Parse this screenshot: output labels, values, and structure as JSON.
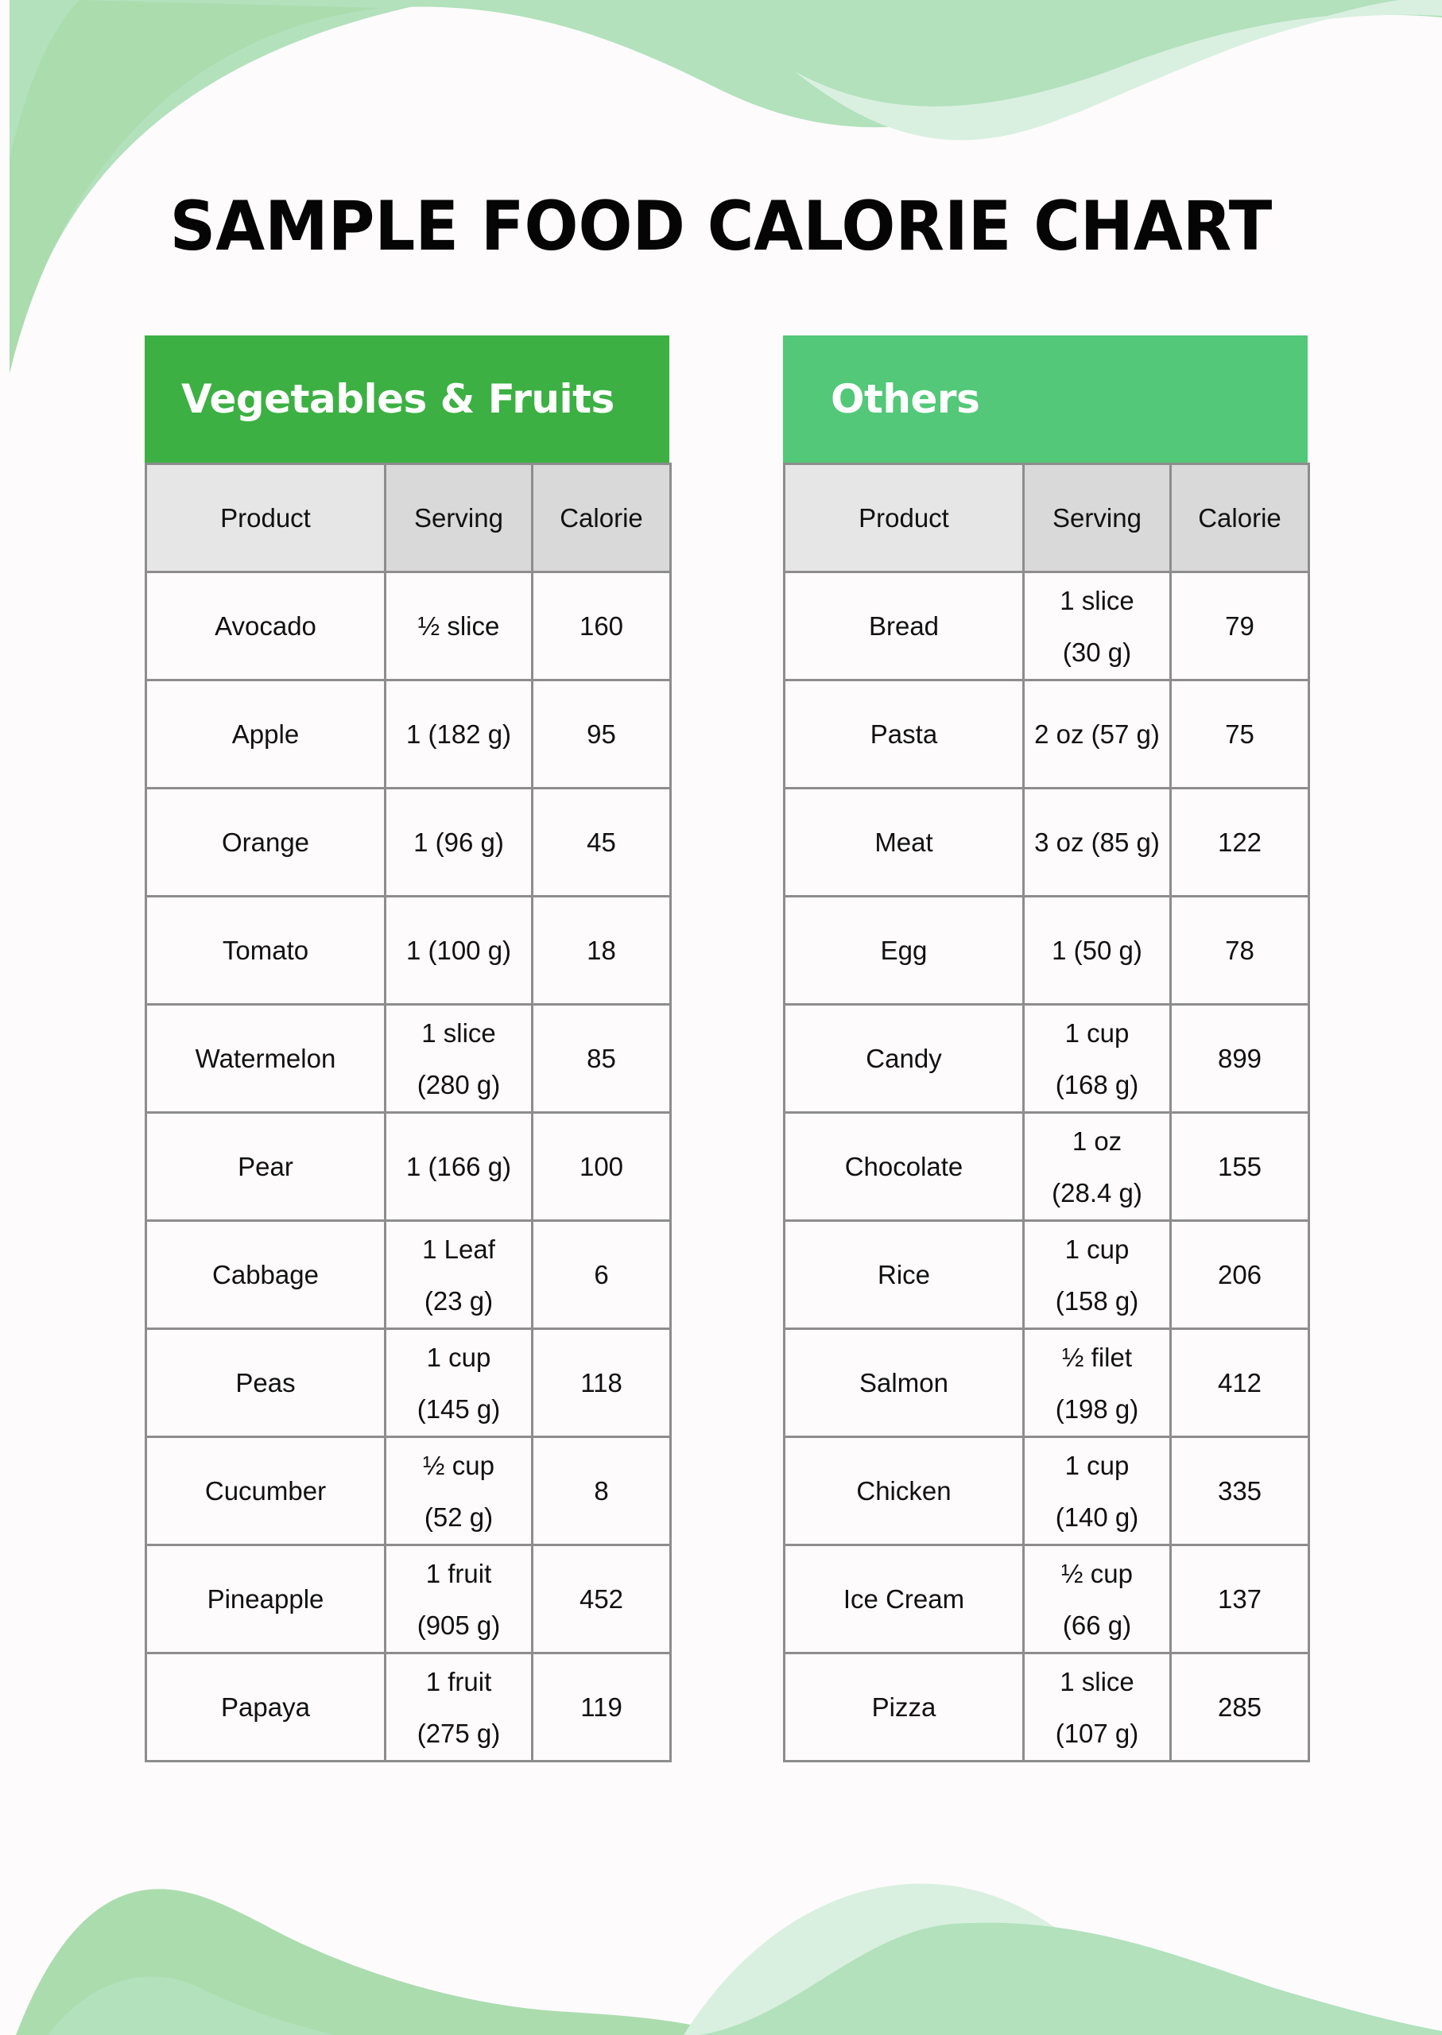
{
  "title": "SAMPLE FOOD CALORIE CHART",
  "colors": {
    "page_background": "#fdfbfc",
    "vegetables_header": "#3cb043",
    "others_header": "#52c878",
    "column_header_product": "#e6e6e6",
    "column_header_other": "#d9d9d9",
    "border": "#8d8d8d",
    "wave_mid": "#abdcae",
    "wave_light": "#b2e1bc",
    "wave_pale": "#d9f0e0"
  },
  "tables": {
    "vegetables": {
      "title": "Vegetables & Fruits",
      "columns": [
        "Product",
        "Serving",
        "Calorie"
      ],
      "rows": [
        {
          "product": "Avocado",
          "serving": [
            "½ slice"
          ],
          "calorie": "160"
        },
        {
          "product": "Apple",
          "serving": [
            "1 (182 g)"
          ],
          "calorie": "95"
        },
        {
          "product": "Orange",
          "serving": [
            "1 (96 g)"
          ],
          "calorie": "45"
        },
        {
          "product": "Tomato",
          "serving": [
            "1 (100 g)"
          ],
          "calorie": "18"
        },
        {
          "product": "Watermelon",
          "serving": [
            "1 slice",
            "(280 g)"
          ],
          "calorie": "85"
        },
        {
          "product": "Pear",
          "serving": [
            "1 (166 g)"
          ],
          "calorie": "100"
        },
        {
          "product": "Cabbage",
          "serving": [
            "1 Leaf",
            "(23 g)"
          ],
          "calorie": "6"
        },
        {
          "product": "Peas",
          "serving": [
            "1 cup",
            "(145 g)"
          ],
          "calorie": "118"
        },
        {
          "product": "Cucumber",
          "serving": [
            "½ cup",
            "(52 g)"
          ],
          "calorie": "8"
        },
        {
          "product": "Pineapple",
          "serving": [
            "1 fruit",
            "(905 g)"
          ],
          "calorie": "452"
        },
        {
          "product": "Papaya",
          "serving": [
            "1 fruit",
            "(275 g)"
          ],
          "calorie": "119"
        }
      ]
    },
    "others": {
      "title": "Others",
      "columns": [
        "Product",
        "Serving",
        "Calorie"
      ],
      "rows": [
        {
          "product": "Bread",
          "serving": [
            "1 slice",
            "(30 g)"
          ],
          "calorie": "79"
        },
        {
          "product": "Pasta",
          "serving": [
            "2 oz (57 g)"
          ],
          "calorie": "75"
        },
        {
          "product": "Meat",
          "serving": [
            "3 oz (85 g)"
          ],
          "calorie": "122"
        },
        {
          "product": "Egg",
          "serving": [
            "1 (50 g)"
          ],
          "calorie": "78"
        },
        {
          "product": "Candy",
          "serving": [
            "1 cup",
            "(168 g)"
          ],
          "calorie": "899"
        },
        {
          "product": "Chocolate",
          "serving": [
            "1 oz",
            "(28.4 g)"
          ],
          "calorie": "155"
        },
        {
          "product": "Rice",
          "serving": [
            "1 cup",
            "(158 g)"
          ],
          "calorie": "206"
        },
        {
          "product": "Salmon",
          "serving": [
            "½ filet",
            "(198 g)"
          ],
          "calorie": "412"
        },
        {
          "product": "Chicken",
          "serving": [
            "1 cup",
            "(140 g)"
          ],
          "calorie": "335"
        },
        {
          "product": "Ice Cream",
          "serving": [
            "½ cup",
            "(66 g)"
          ],
          "calorie": "137"
        },
        {
          "product": "Pizza",
          "serving": [
            "1 slice",
            "(107 g)"
          ],
          "calorie": "285"
        }
      ]
    }
  }
}
